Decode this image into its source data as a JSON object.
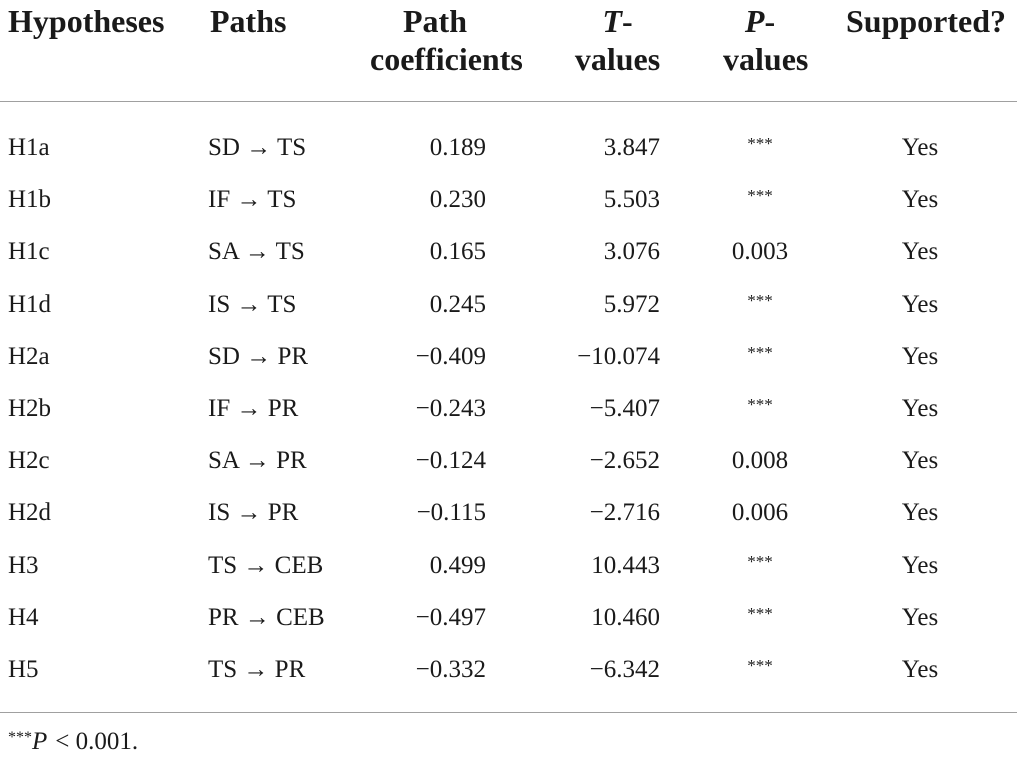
{
  "table": {
    "columns": [
      "Hypotheses",
      "Paths",
      "Path coefficients",
      "T-values",
      "P-values",
      "Supported?"
    ],
    "rows": [
      [
        "H1a",
        "SD → TS",
        "0.189",
        "3.847",
        "***",
        "Yes"
      ],
      [
        "H1b",
        "IF → TS",
        "0.230",
        "5.503",
        "***",
        "Yes"
      ],
      [
        "H1c",
        "SA → TS",
        "0.165",
        "3.076",
        "0.003",
        "Yes"
      ],
      [
        "H1d",
        "IS → TS",
        "0.245",
        "5.972",
        "***",
        "Yes"
      ],
      [
        "H2a",
        "SD → PR",
        "−0.409",
        "−10.074",
        "***",
        "Yes"
      ],
      [
        "H2b",
        "IF → PR",
        "−0.243",
        "−5.407",
        "***",
        "Yes"
      ],
      [
        "H2c",
        "SA → PR",
        "−0.124",
        "−2.652",
        "0.008",
        "Yes"
      ],
      [
        "H2d",
        "IS → PR",
        "−0.115",
        "−2.716",
        "0.006",
        "Yes"
      ],
      [
        "H3",
        "TS → CEB",
        "0.499",
        "10.443",
        "***",
        "Yes"
      ],
      [
        "H4",
        "PR → CEB",
        "−0.497",
        "10.460",
        "***",
        "Yes"
      ],
      [
        "H5",
        "TS → PR",
        "−0.332",
        "−6.342",
        "***",
        "Yes"
      ]
    ]
  },
  "footnote": {
    "marker": "***",
    "variable": "P",
    "text": "< 0.001."
  }
}
